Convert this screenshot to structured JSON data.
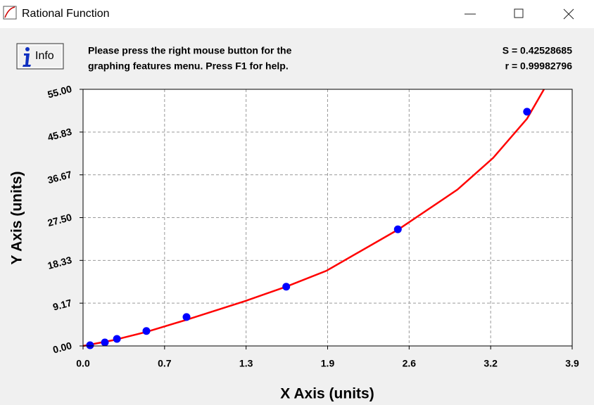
{
  "window": {
    "title": "Rational Function"
  },
  "toolbar": {
    "info_button": "Info",
    "message": [
      "Please press the right mouse button for the",
      "graphing features menu.  Press F1 for help."
    ],
    "stats": [
      "S = 0.42528685",
      "r = 0.99982796"
    ]
  },
  "chart_data": {
    "type": "scatter",
    "x_label": "X Axis (units)",
    "y_label": "Y Axis (units)",
    "xlim": [
      0,
      3.9
    ],
    "ylim": [
      0,
      55
    ],
    "xticks": [
      {
        "value": 0,
        "label": "0.0"
      },
      {
        "value": 0.65,
        "label": "0.7"
      },
      1.3,
      {
        "value": 1.95,
        "label": "1.9"
      },
      2.6,
      {
        "value": 3.25,
        "label": "3.2"
      },
      3.9
    ],
    "yticks": [
      {
        "value": 0,
        "label": "0.00"
      },
      {
        "value": 9.1667,
        "label": "9.17"
      },
      {
        "value": 18.3333,
        "label": "18.33"
      },
      {
        "value": 27.5,
        "label": "27.50"
      },
      {
        "value": 36.6667,
        "label": "36.67"
      },
      {
        "value": 45.8333,
        "label": "45.83"
      },
      {
        "value": 55,
        "label": "55.00"
      }
    ],
    "grid": true,
    "series": [
      {
        "type": "line",
        "color": "#ff0000",
        "x": [
          0,
          0.236,
          0.505,
          0.825,
          1.29,
          1.62,
          1.94,
          2.51,
          2.985,
          3.27,
          3.54,
          3.675
        ],
        "values": [
          0,
          1.2,
          3.0,
          5.6,
          9.6,
          12.7,
          16.1,
          24.9,
          33.5,
          40.3,
          48.7,
          55.0
        ]
      },
      {
        "type": "scatter",
        "color": "#0000ff",
        "x": [
          0.056,
          0.174,
          0.27,
          0.505,
          0.825,
          1.62,
          2.51,
          3.54
        ],
        "values": [
          0.15,
          0.75,
          1.5,
          3.2,
          6.2,
          12.7,
          25.0,
          50.2
        ]
      }
    ]
  }
}
